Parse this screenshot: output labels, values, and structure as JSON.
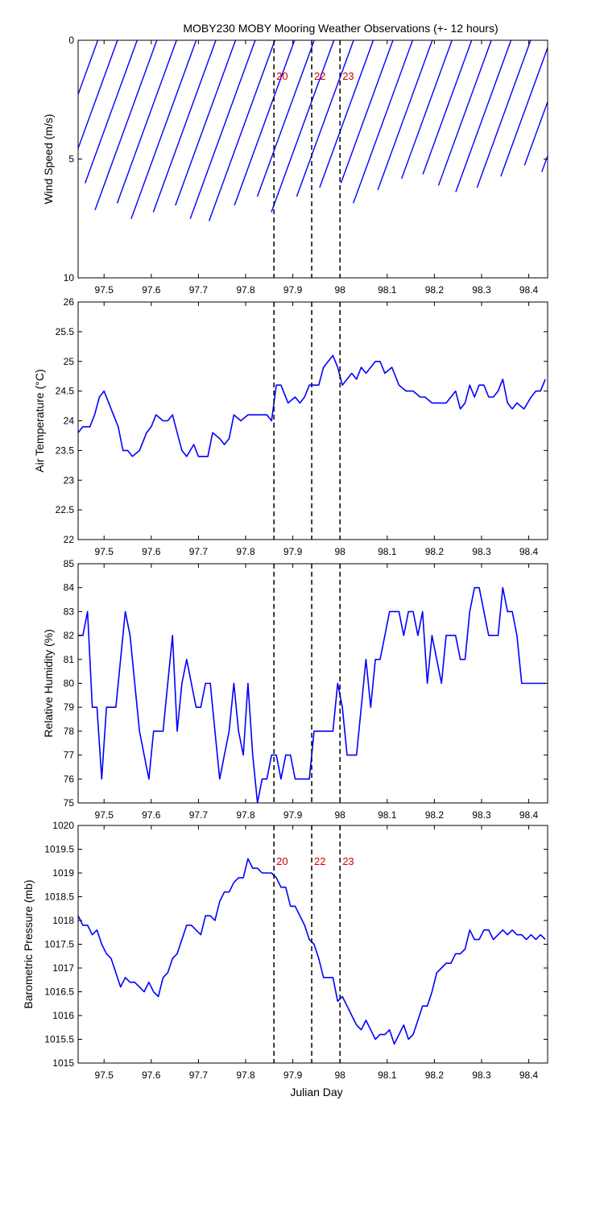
{
  "title": "MOBY230 MOBY Mooring Weather Observations (+- 12 hours)",
  "xlabel": "Julian Day",
  "x_ticks": [
    "97.5",
    "97.6",
    "97.7",
    "97.8",
    "97.9",
    "98",
    "98.1",
    "98.2",
    "98.3",
    "98.4"
  ],
  "colors": {
    "series": "#0000ff",
    "marker": "#000000",
    "marker_label": "#cc0000",
    "axes": "#000000"
  },
  "chart_data": [
    {
      "type": "quiver",
      "ylabel": "Wind Speed (m/s)",
      "xlim": [
        97.445,
        98.44
      ],
      "ylim": [
        0,
        10
      ],
      "y_inverted": true,
      "yticks": [
        0,
        5,
        10
      ],
      "grid": false,
      "x_start": 97.445,
      "x_step": 0.0417,
      "arrow_note": "stick plot: sticks from y=0 down to wind speed, tilted by direction",
      "speeds": [
        2.8,
        6.3,
        5.8,
        6.4,
        7.6,
        7.3,
        8.0,
        7.7,
        7.4,
        8.0,
        8.1,
        7.4,
        7.0,
        7.7,
        7.0,
        6.6,
        6.4,
        7.3,
        6.7,
        6.2,
        6.0,
        6.5,
        6.8,
        6.6,
        6.1,
        5.6,
        5.9,
        6.3,
        5.5,
        5.4,
        5.0,
        5.2,
        4.6,
        5.0
      ],
      "directions_deg": [
        200,
        200,
        200,
        200,
        200,
        200,
        200,
        200,
        200,
        200,
        200,
        200,
        200,
        200,
        200,
        200,
        200,
        200,
        200,
        200,
        200,
        200,
        200,
        200,
        200,
        200,
        200,
        200,
        200,
        200,
        200,
        200,
        200,
        200
      ],
      "markers": [
        {
          "x": 97.86,
          "label": "20"
        },
        {
          "x": 97.94,
          "label": "22"
        },
        {
          "x": 98.0,
          "label": "23"
        }
      ]
    },
    {
      "type": "line",
      "ylabel": "Air Temperature (°C)",
      "xlim": [
        97.445,
        98.44
      ],
      "ylim": [
        22,
        26
      ],
      "yticks": [
        22,
        22.5,
        23,
        23.5,
        24,
        24.5,
        25,
        25.5,
        26
      ],
      "grid": false,
      "x": [
        97.445,
        97.455,
        97.47,
        97.48,
        97.49,
        97.5,
        97.515,
        97.53,
        97.54,
        97.55,
        97.56,
        97.575,
        97.59,
        97.6,
        97.61,
        97.625,
        97.635,
        97.645,
        97.655,
        97.665,
        97.675,
        97.69,
        97.7,
        97.71,
        97.72,
        97.73,
        97.745,
        97.755,
        97.765,
        97.775,
        97.79,
        97.805,
        97.82,
        97.83,
        97.845,
        97.855,
        97.865,
        97.875,
        97.89,
        97.905,
        97.915,
        97.925,
        97.935,
        97.945,
        97.955,
        97.965,
        97.975,
        97.985,
        97.995,
        98.005,
        98.015,
        98.025,
        98.035,
        98.045,
        98.055,
        98.065,
        98.075,
        98.085,
        98.095,
        98.11,
        98.125,
        98.14,
        98.155,
        98.17,
        98.18,
        98.195,
        98.205,
        98.215,
        98.225,
        98.235,
        98.245,
        98.255,
        98.265,
        98.275,
        98.285,
        98.295,
        98.305,
        98.315,
        98.325,
        98.335,
        98.345,
        98.355,
        98.365,
        98.375,
        98.39,
        98.405,
        98.415,
        98.425,
        98.435
      ],
      "y": [
        23.8,
        23.9,
        23.9,
        24.1,
        24.4,
        24.5,
        24.2,
        23.9,
        23.5,
        23.5,
        23.4,
        23.5,
        23.8,
        23.9,
        24.1,
        24.0,
        24.0,
        24.1,
        23.8,
        23.5,
        23.4,
        23.6,
        23.4,
        23.4,
        23.4,
        23.8,
        23.7,
        23.6,
        23.7,
        24.1,
        24.0,
        24.1,
        24.1,
        24.1,
        24.1,
        24.0,
        24.6,
        24.6,
        24.3,
        24.4,
        24.3,
        24.4,
        24.6,
        24.6,
        24.6,
        24.9,
        25.0,
        25.1,
        24.9,
        24.6,
        24.7,
        24.8,
        24.7,
        24.9,
        24.8,
        24.9,
        25.0,
        25.0,
        24.8,
        24.9,
        24.6,
        24.5,
        24.5,
        24.4,
        24.4,
        24.3,
        24.3,
        24.3,
        24.3,
        24.4,
        24.5,
        24.2,
        24.3,
        24.6,
        24.4,
        24.6,
        24.6,
        24.4,
        24.4,
        24.5,
        24.7,
        24.3,
        24.2,
        24.3,
        24.2,
        24.4,
        24.5,
        24.5,
        24.7
      ]
    },
    {
      "type": "line",
      "ylabel": "Relative Humidity (%)",
      "xlim": [
        97.445,
        98.44
      ],
      "ylim": [
        75,
        85
      ],
      "yticks": [
        75,
        76,
        77,
        78,
        79,
        80,
        81,
        82,
        83,
        84,
        85
      ],
      "grid": false,
      "x": [
        97.445,
        97.455,
        97.465,
        97.475,
        97.485,
        97.495,
        97.505,
        97.515,
        97.525,
        97.535,
        97.545,
        97.555,
        97.565,
        97.575,
        97.585,
        97.595,
        97.605,
        97.615,
        97.625,
        97.635,
        97.645,
        97.655,
        97.665,
        97.675,
        97.685,
        97.695,
        97.705,
        97.715,
        97.725,
        97.735,
        97.745,
        97.755,
        97.765,
        97.775,
        97.785,
        97.795,
        97.805,
        97.815,
        97.825,
        97.835,
        97.845,
        97.855,
        97.865,
        97.875,
        97.885,
        97.895,
        97.905,
        97.915,
        97.925,
        97.935,
        97.945,
        97.955,
        97.965,
        97.975,
        97.985,
        97.995,
        98.005,
        98.015,
        98.025,
        98.035,
        98.045,
        98.055,
        98.065,
        98.075,
        98.085,
        98.095,
        98.105,
        98.115,
        98.125,
        98.135,
        98.145,
        98.155,
        98.165,
        98.175,
        98.185,
        98.195,
        98.205,
        98.215,
        98.225,
        98.235,
        98.245,
        98.255,
        98.265,
        98.275,
        98.285,
        98.295,
        98.305,
        98.315,
        98.325,
        98.335,
        98.345,
        98.355,
        98.365,
        98.375,
        98.385,
        98.395,
        98.405,
        98.415,
        98.425,
        98.435
      ],
      "y": [
        82,
        82,
        83,
        79,
        79,
        76,
        79,
        79,
        79,
        81,
        83,
        82,
        80,
        78,
        77,
        76,
        78,
        78,
        78,
        80,
        82,
        78,
        80,
        81,
        80,
        79,
        79,
        80,
        80,
        78,
        76,
        77,
        78,
        80,
        78,
        77,
        80,
        77,
        75,
        76,
        76,
        77,
        77,
        76,
        77,
        77,
        76,
        76,
        76,
        76,
        78,
        78,
        78,
        78,
        78,
        80,
        79,
        77,
        77,
        77,
        79,
        81,
        79,
        81,
        81,
        82,
        83,
        83,
        83,
        82,
        83,
        83,
        82,
        83,
        80,
        82,
        81,
        80,
        82,
        82,
        82,
        81,
        81,
        83,
        84,
        84,
        83,
        82,
        82,
        82,
        84,
        83,
        83,
        82,
        80,
        80,
        80,
        80,
        80,
        80
      ]
    },
    {
      "type": "line",
      "ylabel": "Barometric Pressure (mb)",
      "xlim": [
        97.445,
        98.44
      ],
      "ylim": [
        1015,
        1020
      ],
      "yticks": [
        1015,
        1015.5,
        1016,
        1016.5,
        1017,
        1017.5,
        1018,
        1018.5,
        1019,
        1019.5,
        1020
      ],
      "grid": false,
      "x": [
        97.445,
        97.455,
        97.465,
        97.475,
        97.485,
        97.495,
        97.505,
        97.515,
        97.525,
        97.535,
        97.545,
        97.555,
        97.565,
        97.575,
        97.585,
        97.595,
        97.605,
        97.615,
        97.625,
        97.635,
        97.645,
        97.655,
        97.665,
        97.675,
        97.685,
        97.695,
        97.705,
        97.715,
        97.725,
        97.735,
        97.745,
        97.755,
        97.765,
        97.775,
        97.785,
        97.795,
        97.805,
        97.815,
        97.825,
        97.835,
        97.845,
        97.855,
        97.865,
        97.875,
        97.885,
        97.895,
        97.905,
        97.915,
        97.925,
        97.935,
        97.945,
        97.955,
        97.965,
        97.975,
        97.985,
        97.995,
        98.005,
        98.015,
        98.025,
        98.035,
        98.045,
        98.055,
        98.065,
        98.075,
        98.085,
        98.095,
        98.105,
        98.115,
        98.125,
        98.135,
        98.145,
        98.155,
        98.165,
        98.175,
        98.185,
        98.195,
        98.205,
        98.215,
        98.225,
        98.235,
        98.245,
        98.255,
        98.265,
        98.275,
        98.285,
        98.295,
        98.305,
        98.315,
        98.325,
        98.335,
        98.345,
        98.355,
        98.365,
        98.375,
        98.385,
        98.395,
        98.405,
        98.415,
        98.425,
        98.435
      ],
      "y": [
        1018.1,
        1017.9,
        1017.9,
        1017.7,
        1017.8,
        1017.5,
        1017.3,
        1017.2,
        1016.9,
        1016.6,
        1016.8,
        1016.7,
        1016.7,
        1016.6,
        1016.5,
        1016.7,
        1016.5,
        1016.4,
        1016.8,
        1016.9,
        1017.2,
        1017.3,
        1017.6,
        1017.9,
        1017.9,
        1017.8,
        1017.7,
        1018.1,
        1018.1,
        1018.0,
        1018.4,
        1018.6,
        1018.6,
        1018.8,
        1018.9,
        1018.9,
        1019.3,
        1019.1,
        1019.1,
        1019.0,
        1019.0,
        1019.0,
        1018.9,
        1018.7,
        1018.7,
        1018.3,
        1018.3,
        1018.1,
        1017.9,
        1017.6,
        1017.5,
        1017.2,
        1016.8,
        1016.8,
        1016.8,
        1016.3,
        1016.4,
        1016.2,
        1016.0,
        1015.8,
        1015.7,
        1015.9,
        1015.7,
        1015.5,
        1015.6,
        1015.6,
        1015.7,
        1015.4,
        1015.6,
        1015.8,
        1015.5,
        1015.6,
        1015.9,
        1016.2,
        1016.2,
        1016.5,
        1016.9,
        1017.0,
        1017.1,
        1017.1,
        1017.3,
        1017.3,
        1017.4,
        1017.8,
        1017.6,
        1017.6,
        1017.8,
        1017.8,
        1017.6,
        1017.7,
        1017.8,
        1017.7,
        1017.8,
        1017.7,
        1017.7,
        1017.6,
        1017.7,
        1017.6,
        1017.7,
        1017.6
      ],
      "markers": [
        {
          "x": 97.86,
          "label": "20"
        },
        {
          "x": 97.94,
          "label": "22"
        },
        {
          "x": 98.0,
          "label": "23"
        }
      ]
    }
  ]
}
